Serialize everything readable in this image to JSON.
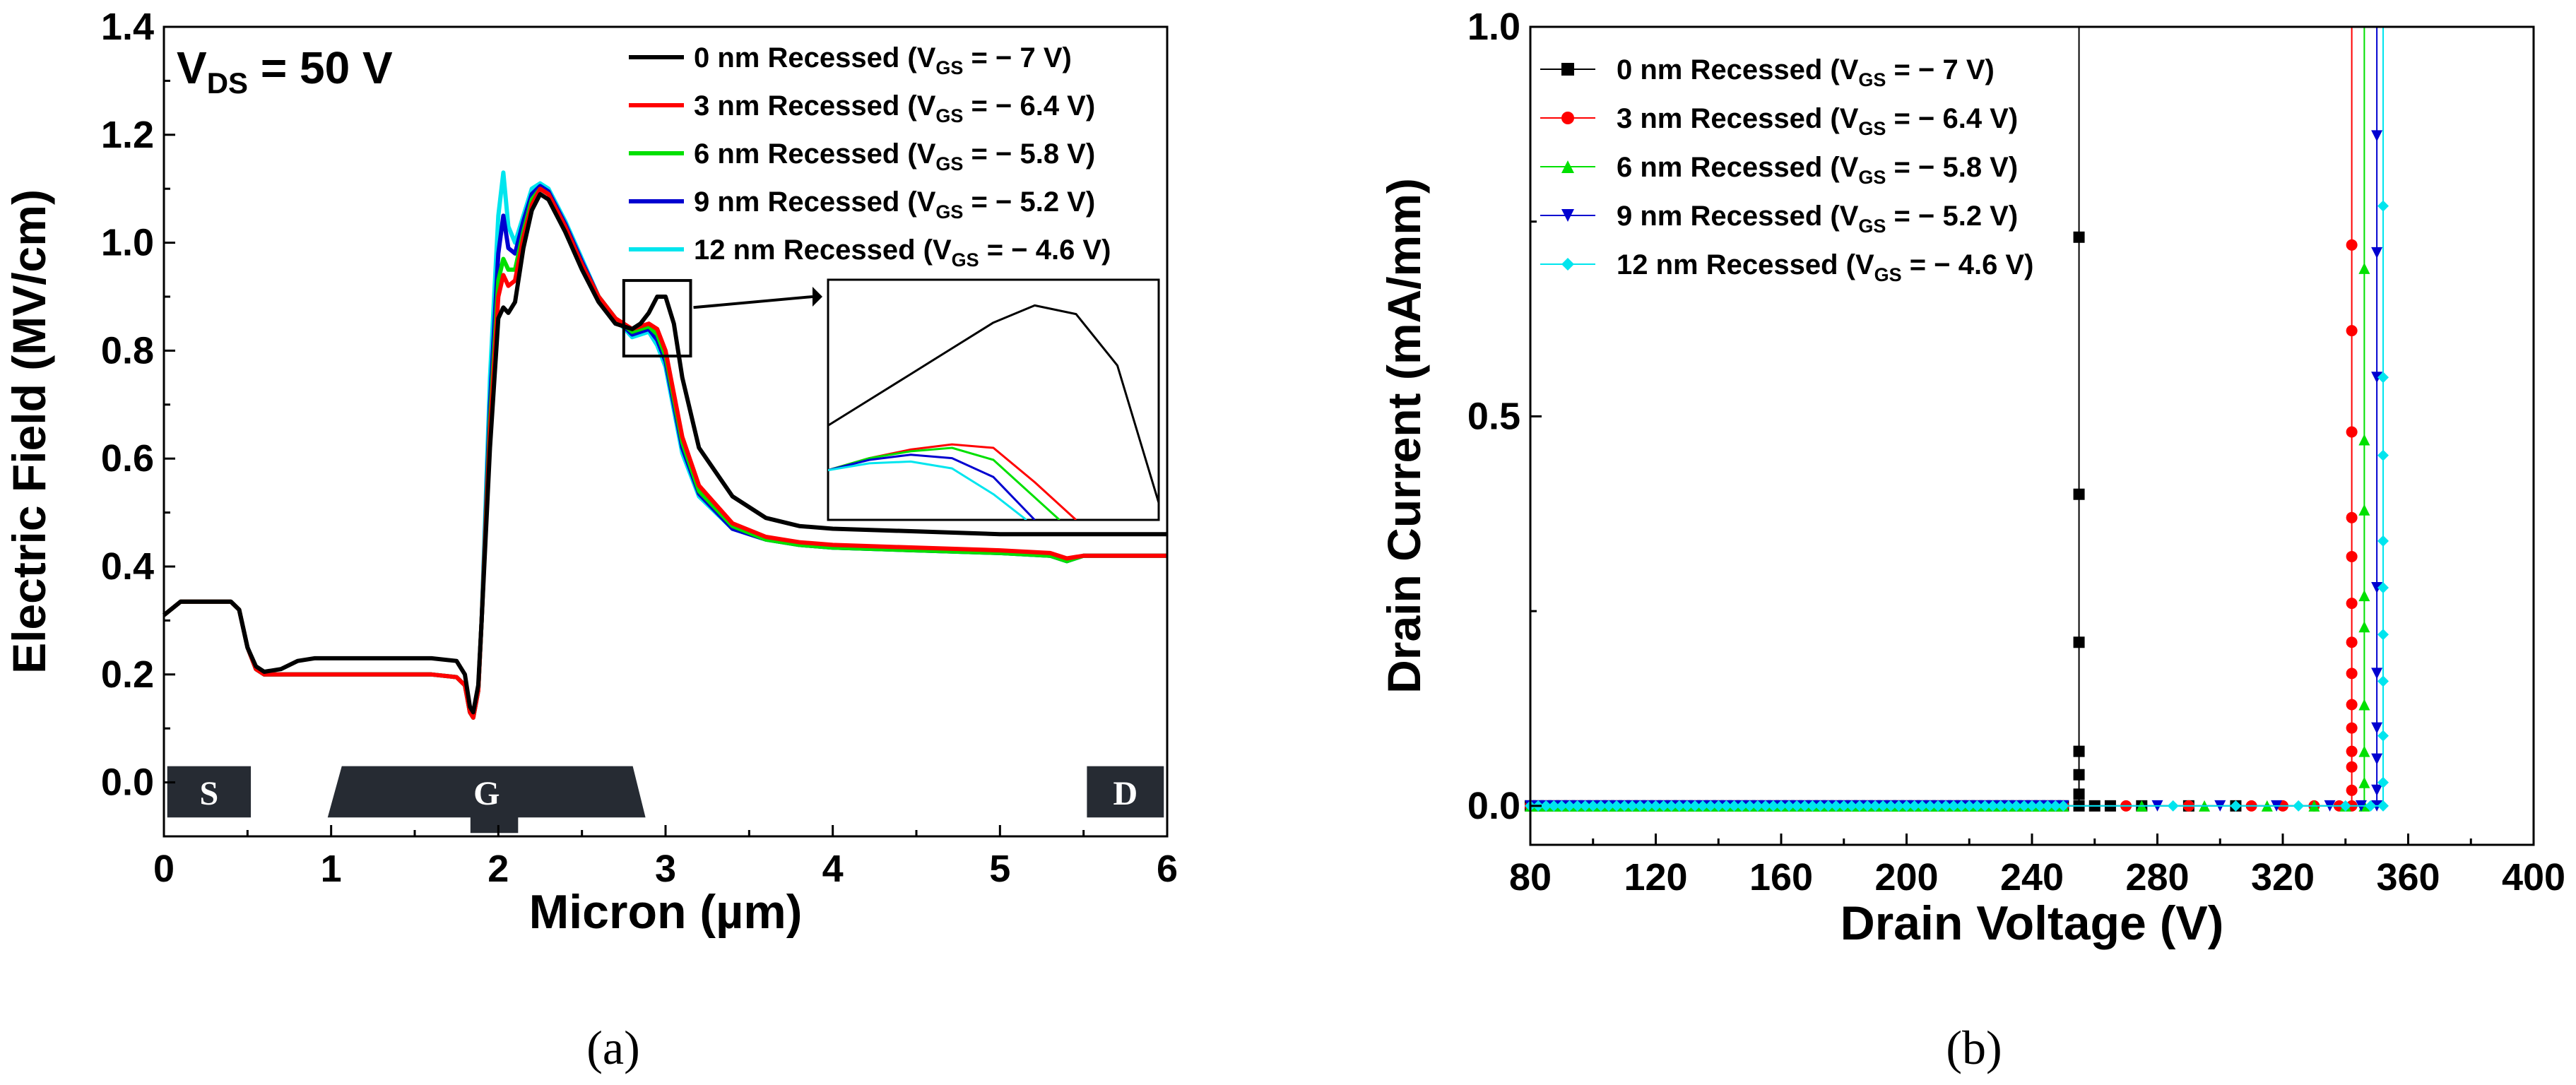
{
  "chart_data": [
    {
      "type": "line",
      "panel": "(a)",
      "annotation": "VDS = 50 V",
      "annotation_main": "V",
      "annotation_sub": "DS",
      "annotation_rest": " = 50 V",
      "xlabel": "Micron (µm)",
      "ylabel": "Electric Field (MV/cm)",
      "xlim": [
        0,
        6
      ],
      "ylim": [
        -0.1,
        1.4
      ],
      "xticks": [
        "0",
        "1",
        "2",
        "3",
        "4",
        "5",
        "6"
      ],
      "yticks": [
        "0.0",
        "0.2",
        "0.4",
        "0.6",
        "0.8",
        "1.0",
        "1.2",
        "1.4"
      ],
      "regions": [
        {
          "label": "S",
          "x0": 0.02,
          "x1": 0.52
        },
        {
          "label": "G",
          "x0": 1.03,
          "x1": 2.88
        },
        {
          "label": "D",
          "x0": 5.52,
          "x1": 5.98
        }
      ],
      "inset_box": {
        "x0": 2.75,
        "x1": 3.15,
        "y0": 0.79,
        "y1": 0.93
      },
      "series": [
        {
          "name": "0 nm Recessed (VGS = − 7 V)",
          "label_main": "0 nm Recessed (V",
          "label_rest": " = − 7 V)",
          "color": "#000000",
          "x": [
            0,
            0.1,
            0.2,
            0.3,
            0.4,
            0.45,
            0.5,
            0.55,
            0.6,
            0.7,
            0.8,
            0.9,
            1.0,
            1.2,
            1.4,
            1.6,
            1.75,
            1.8,
            1.83,
            1.85,
            1.88,
            1.9,
            1.95,
            2.0,
            2.03,
            2.06,
            2.1,
            2.15,
            2.2,
            2.25,
            2.3,
            2.4,
            2.5,
            2.6,
            2.7,
            2.8,
            2.85,
            2.9,
            2.95,
            3.0,
            3.05,
            3.1,
            3.2,
            3.4,
            3.6,
            3.8,
            4.0,
            4.5,
            5.0,
            5.3,
            5.5,
            5.8,
            6.0
          ],
          "y": [
            0.31,
            0.335,
            0.335,
            0.335,
            0.335,
            0.32,
            0.25,
            0.215,
            0.205,
            0.21,
            0.225,
            0.23,
            0.23,
            0.23,
            0.23,
            0.23,
            0.225,
            0.2,
            0.14,
            0.13,
            0.18,
            0.3,
            0.62,
            0.86,
            0.88,
            0.87,
            0.89,
            0.99,
            1.06,
            1.09,
            1.08,
            1.02,
            0.95,
            0.89,
            0.85,
            0.84,
            0.85,
            0.87,
            0.9,
            0.9,
            0.85,
            0.75,
            0.62,
            0.53,
            0.49,
            0.475,
            0.47,
            0.465,
            0.46,
            0.46,
            0.46,
            0.46,
            0.46
          ]
        },
        {
          "name": "3 nm Recessed (VGS = − 6.4 V)",
          "label_main": "3 nm Recessed (V",
          "label_rest": " = − 6.4 V)",
          "color": "#ff0000",
          "x": [
            0,
            0.1,
            0.2,
            0.3,
            0.4,
            0.45,
            0.5,
            0.55,
            0.6,
            0.7,
            0.8,
            0.9,
            1.0,
            1.2,
            1.4,
            1.6,
            1.75,
            1.8,
            1.83,
            1.85,
            1.88,
            1.9,
            1.95,
            2.0,
            2.03,
            2.06,
            2.1,
            2.15,
            2.2,
            2.25,
            2.3,
            2.4,
            2.5,
            2.6,
            2.7,
            2.8,
            2.85,
            2.9,
            2.95,
            3.0,
            3.05,
            3.1,
            3.2,
            3.4,
            3.6,
            3.8,
            4.0,
            4.5,
            5.0,
            5.3,
            5.4,
            5.5,
            5.8,
            6.0
          ],
          "y": [
            0.31,
            0.335,
            0.335,
            0.335,
            0.335,
            0.32,
            0.25,
            0.21,
            0.2,
            0.2,
            0.2,
            0.2,
            0.2,
            0.2,
            0.2,
            0.2,
            0.195,
            0.18,
            0.13,
            0.12,
            0.17,
            0.3,
            0.65,
            0.9,
            0.94,
            0.92,
            0.93,
            1.01,
            1.07,
            1.1,
            1.09,
            1.03,
            0.96,
            0.9,
            0.86,
            0.84,
            0.845,
            0.85,
            0.84,
            0.8,
            0.72,
            0.64,
            0.55,
            0.48,
            0.455,
            0.445,
            0.44,
            0.435,
            0.43,
            0.425,
            0.415,
            0.42,
            0.42,
            0.42
          ]
        },
        {
          "name": "6 nm Recessed (VGS = − 5.8 V)",
          "label_main": "6 nm Recessed (V",
          "label_rest": " = − 5.8 V)",
          "color": "#00e000",
          "x": [
            0,
            0.1,
            0.2,
            0.3,
            0.4,
            0.45,
            0.5,
            0.55,
            0.6,
            0.7,
            0.8,
            0.9,
            1.0,
            1.2,
            1.4,
            1.6,
            1.75,
            1.8,
            1.83,
            1.85,
            1.88,
            1.9,
            1.95,
            2.0,
            2.03,
            2.06,
            2.1,
            2.15,
            2.2,
            2.25,
            2.3,
            2.4,
            2.5,
            2.6,
            2.7,
            2.8,
            2.85,
            2.9,
            2.95,
            3.0,
            3.05,
            3.1,
            3.2,
            3.4,
            3.6,
            3.8,
            4.0,
            4.5,
            5.0,
            5.3,
            5.4,
            5.5,
            5.8,
            6.0
          ],
          "y": [
            0.31,
            0.335,
            0.335,
            0.335,
            0.335,
            0.32,
            0.25,
            0.21,
            0.2,
            0.2,
            0.2,
            0.2,
            0.2,
            0.2,
            0.2,
            0.2,
            0.195,
            0.18,
            0.13,
            0.12,
            0.17,
            0.3,
            0.67,
            0.93,
            0.97,
            0.95,
            0.95,
            1.02,
            1.08,
            1.1,
            1.09,
            1.03,
            0.96,
            0.9,
            0.86,
            0.835,
            0.84,
            0.845,
            0.83,
            0.79,
            0.71,
            0.63,
            0.54,
            0.475,
            0.45,
            0.44,
            0.435,
            0.43,
            0.425,
            0.42,
            0.41,
            0.42,
            0.42,
            0.42
          ]
        },
        {
          "name": "9 nm Recessed (VGS = − 5.2 V)",
          "label_main": "9 nm Recessed (V",
          "label_rest": " = − 5.2 V)",
          "color": "#0000d0",
          "x": [
            0,
            0.1,
            0.2,
            0.3,
            0.4,
            0.45,
            0.5,
            0.55,
            0.6,
            0.7,
            0.8,
            0.9,
            1.0,
            1.2,
            1.4,
            1.6,
            1.75,
            1.8,
            1.83,
            1.85,
            1.88,
            1.9,
            1.95,
            2.0,
            2.03,
            2.06,
            2.1,
            2.15,
            2.2,
            2.25,
            2.3,
            2.4,
            2.5,
            2.6,
            2.7,
            2.8,
            2.85,
            2.9,
            2.95,
            3.0,
            3.05,
            3.1,
            3.2,
            3.4,
            3.6,
            3.8,
            4.0,
            4.5,
            5.0,
            5.3,
            5.4,
            5.5,
            5.8,
            6.0
          ],
          "y": [
            0.31,
            0.335,
            0.335,
            0.335,
            0.335,
            0.32,
            0.25,
            0.21,
            0.2,
            0.2,
            0.2,
            0.2,
            0.2,
            0.2,
            0.2,
            0.2,
            0.195,
            0.18,
            0.13,
            0.12,
            0.17,
            0.3,
            0.7,
            0.98,
            1.05,
            0.99,
            0.98,
            1.04,
            1.09,
            1.105,
            1.095,
            1.035,
            0.965,
            0.9,
            0.86,
            0.83,
            0.835,
            0.84,
            0.82,
            0.78,
            0.7,
            0.62,
            0.535,
            0.47,
            0.45,
            0.44,
            0.435,
            0.43,
            0.425,
            0.42,
            0.41,
            0.42,
            0.42,
            0.42
          ]
        },
        {
          "name": "12 nm Recessed (VGS = − 4.6 V)",
          "label_main": "12 nm Recessed (V",
          "label_rest": " = − 4.6 V)",
          "color": "#00e5ee",
          "x": [
            0,
            0.1,
            0.2,
            0.3,
            0.4,
            0.45,
            0.5,
            0.55,
            0.6,
            0.7,
            0.8,
            0.9,
            1.0,
            1.2,
            1.4,
            1.6,
            1.75,
            1.8,
            1.83,
            1.85,
            1.88,
            1.9,
            1.95,
            2.0,
            2.03,
            2.06,
            2.1,
            2.15,
            2.2,
            2.25,
            2.3,
            2.4,
            2.5,
            2.6,
            2.7,
            2.8,
            2.85,
            2.9,
            2.95,
            3.0,
            3.05,
            3.1,
            3.2,
            3.4,
            3.6,
            3.8,
            4.0,
            4.5,
            5.0,
            5.3,
            5.4,
            5.5,
            5.8,
            6.0
          ],
          "y": [
            0.31,
            0.335,
            0.335,
            0.335,
            0.335,
            0.32,
            0.25,
            0.21,
            0.2,
            0.2,
            0.2,
            0.2,
            0.2,
            0.2,
            0.2,
            0.2,
            0.195,
            0.18,
            0.13,
            0.12,
            0.17,
            0.3,
            0.75,
            1.05,
            1.13,
            1.03,
            1.0,
            1.05,
            1.1,
            1.11,
            1.1,
            1.04,
            0.97,
            0.9,
            0.86,
            0.825,
            0.83,
            0.835,
            0.81,
            0.77,
            0.69,
            0.61,
            0.53,
            0.47,
            0.45,
            0.44,
            0.435,
            0.43,
            0.425,
            0.42,
            0.41,
            0.42,
            0.42,
            0.42
          ]
        }
      ],
      "inset_series": [
        {
          "color": "#000000",
          "x": [
            2.75,
            2.8,
            2.85,
            2.9,
            2.95,
            3.0,
            3.05,
            3.1,
            3.15
          ],
          "y": [
            0.845,
            0.86,
            0.875,
            0.89,
            0.905,
            0.915,
            0.91,
            0.88,
            0.8
          ]
        },
        {
          "color": "#ff0000",
          "x": [
            2.75,
            2.8,
            2.85,
            2.9,
            2.95,
            3.0,
            3.05
          ],
          "y": [
            0.819,
            0.826,
            0.831,
            0.834,
            0.832,
            0.812,
            0.79
          ]
        },
        {
          "color": "#00e000",
          "x": [
            2.75,
            2.8,
            2.85,
            2.9,
            2.95,
            3.03
          ],
          "y": [
            0.819,
            0.826,
            0.83,
            0.832,
            0.825,
            0.79
          ]
        },
        {
          "color": "#0000d0",
          "x": [
            2.75,
            2.8,
            2.85,
            2.9,
            2.95,
            3.0
          ],
          "y": [
            0.819,
            0.825,
            0.828,
            0.826,
            0.815,
            0.79
          ]
        },
        {
          "color": "#00e5ee",
          "x": [
            2.75,
            2.8,
            2.85,
            2.9,
            2.95,
            2.99
          ],
          "y": [
            0.819,
            0.823,
            0.824,
            0.82,
            0.805,
            0.79
          ]
        }
      ]
    },
    {
      "type": "scatter",
      "panel": "(b)",
      "xlabel": "Drain Voltage (V)",
      "ylabel": "Drain Current (mA/mm)",
      "xlim": [
        80,
        400
      ],
      "ylim": [
        -0.05,
        1.0
      ],
      "xticks": [
        "80",
        "120",
        "160",
        "200",
        "240",
        "280",
        "320",
        "360",
        "400"
      ],
      "yticks": [
        "0.0",
        "0.5",
        "1.0"
      ],
      "series": [
        {
          "name": "0 nm Recessed (VGS = − 7 V)",
          "label_main": "0 nm Recessed (V",
          "label_rest": " = − 7 V)",
          "color": "#000000",
          "marker": "square",
          "breakdown": 255,
          "x_max": 255,
          "rise": [
            0.0,
            0.015,
            0.04,
            0.07,
            0.21,
            0.4,
            0.73
          ],
          "flat_extra": [
            260,
            265,
            275,
            290,
            305
          ]
        },
        {
          "name": "3 nm Recessed (VGS = − 6.4 V)",
          "label_main": "3 nm Recessed (V",
          "label_rest": " = − 6.4 V)",
          "color": "#ff0000",
          "marker": "circle",
          "breakdown": 342,
          "x_max": 342,
          "rise": [
            0.0,
            0.02,
            0.05,
            0.07,
            0.1,
            0.13,
            0.17,
            0.21,
            0.26,
            0.32,
            0.37,
            0.48,
            0.61,
            0.72
          ],
          "flat_extra": [
            270,
            290,
            310,
            320,
            330,
            338
          ]
        },
        {
          "name": "6 nm Recessed (VGS = − 5.8 V)",
          "label_main": "6 nm Recessed (V",
          "label_rest": " = − 5.8 V)",
          "color": "#00e000",
          "marker": "triangle-up",
          "breakdown": 346,
          "x_max": 346,
          "rise": [
            0.0,
            0.03,
            0.07,
            0.13,
            0.23,
            0.27,
            0.38,
            0.47,
            0.69
          ],
          "flat_extra": [
            275,
            295,
            315,
            330,
            340
          ]
        },
        {
          "name": "9 nm Recessed (VGS = − 5.2 V)",
          "label_main": "9 nm Recessed (V",
          "label_rest": " = − 5.2 V)",
          "color": "#0000d0",
          "marker": "triangle-down",
          "breakdown": 350,
          "x_max": 350,
          "rise": [
            0.0,
            0.02,
            0.06,
            0.1,
            0.17,
            0.28,
            0.55,
            0.71,
            0.86
          ],
          "flat_extra": [
            280,
            300,
            318,
            335,
            345
          ]
        },
        {
          "name": "12 nm Recessed (VGS = − 4.6 V)",
          "label_main": "12 nm Recessed (V",
          "label_rest": " = − 4.6 V)",
          "color": "#00e5ee",
          "marker": "diamond",
          "breakdown": 352,
          "x_max": 352,
          "rise": [
            0.0,
            0.03,
            0.09,
            0.16,
            0.22,
            0.28,
            0.34,
            0.45,
            0.55,
            0.77
          ],
          "flat_extra": [
            285,
            305,
            325,
            340,
            348
          ]
        }
      ]
    }
  ]
}
